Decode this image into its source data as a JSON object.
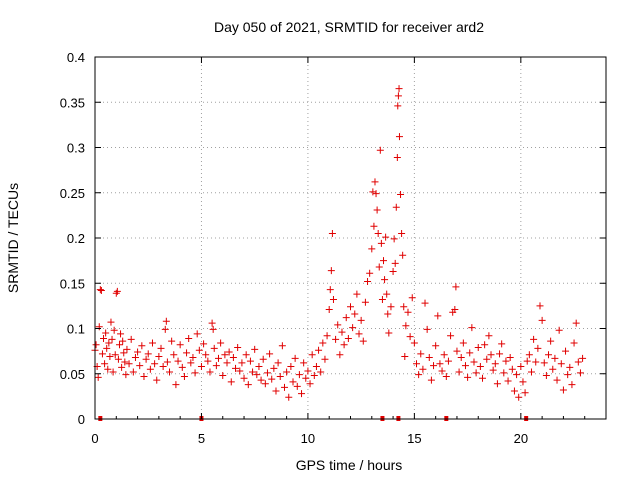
{
  "chart_data": {
    "type": "scatter",
    "title": "Day 050 of 2021, SRMTID for receiver ard2",
    "xlabel": "GPS time / hours",
    "ylabel": "SRMTID / TECUs",
    "xlim": [
      0,
      24
    ],
    "ylim": [
      0,
      0.4
    ],
    "xticks": [
      0,
      5,
      10,
      15,
      20
    ],
    "yticks": [
      0,
      0.05,
      0.1,
      0.15,
      0.2,
      0.25,
      0.3,
      0.35,
      0.4
    ],
    "xtick_labels": [
      "0",
      "5",
      "10",
      "15",
      "20"
    ],
    "ytick_labels": [
      "0",
      "0.05",
      "0.1",
      "0.15",
      "0.2",
      "0.25",
      "0.3",
      "0.35",
      "0.4"
    ],
    "grid": true,
    "marker": "+",
    "series_color": "#e00000",
    "gap_marker_hours": [
      0.25,
      5.0,
      13.5,
      14.25,
      16.5,
      20.25
    ],
    "series": [
      {
        "name": "ard2",
        "points": [
          [
            0.0,
            0.076
          ],
          [
            0.05,
            0.082
          ],
          [
            0.1,
            0.058
          ],
          [
            0.15,
            0.046
          ],
          [
            0.2,
            0.102
          ],
          [
            0.25,
            0.143
          ],
          [
            0.3,
            0.142
          ],
          [
            0.35,
            0.072
          ],
          [
            0.4,
            0.089
          ],
          [
            0.45,
            0.061
          ],
          [
            0.5,
            0.095
          ],
          [
            0.55,
            0.078
          ],
          [
            0.6,
            0.055
          ],
          [
            0.65,
            0.084
          ],
          [
            0.7,
            0.069
          ],
          [
            0.75,
            0.107
          ],
          [
            0.8,
            0.088
          ],
          [
            0.85,
            0.052
          ],
          [
            0.9,
            0.098
          ],
          [
            0.95,
            0.071
          ],
          [
            1.0,
            0.139
          ],
          [
            1.05,
            0.141
          ],
          [
            1.1,
            0.066
          ],
          [
            1.15,
            0.082
          ],
          [
            1.2,
            0.094
          ],
          [
            1.25,
            0.057
          ],
          [
            1.3,
            0.086
          ],
          [
            1.35,
            0.073
          ],
          [
            1.4,
            0.063
          ],
          [
            1.45,
            0.049
          ],
          [
            1.5,
            0.077
          ],
          [
            1.6,
            0.061
          ],
          [
            1.7,
            0.088
          ],
          [
            1.8,
            0.052
          ],
          [
            1.9,
            0.068
          ],
          [
            2.0,
            0.074
          ],
          [
            2.1,
            0.059
          ],
          [
            2.2,
            0.081
          ],
          [
            2.3,
            0.047
          ],
          [
            2.4,
            0.066
          ],
          [
            2.5,
            0.072
          ],
          [
            2.6,
            0.055
          ],
          [
            2.7,
            0.084
          ],
          [
            2.8,
            0.061
          ],
          [
            2.9,
            0.043
          ],
          [
            3.0,
            0.069
          ],
          [
            3.1,
            0.078
          ],
          [
            3.2,
            0.058
          ],
          [
            3.3,
            0.099
          ],
          [
            3.35,
            0.108
          ],
          [
            3.4,
            0.063
          ],
          [
            3.5,
            0.052
          ],
          [
            3.6,
            0.086
          ],
          [
            3.7,
            0.071
          ],
          [
            3.8,
            0.038
          ],
          [
            3.9,
            0.064
          ],
          [
            4.0,
            0.082
          ],
          [
            4.1,
            0.057
          ],
          [
            4.2,
            0.047
          ],
          [
            4.3,
            0.073
          ],
          [
            4.4,
            0.089
          ],
          [
            4.5,
            0.062
          ],
          [
            4.6,
            0.068
          ],
          [
            4.7,
            0.051
          ],
          [
            4.8,
            0.094
          ],
          [
            4.9,
            0.076
          ],
          [
            5.0,
            0.058
          ],
          [
            5.1,
            0.083
          ],
          [
            5.2,
            0.071
          ],
          [
            5.3,
            0.064
          ],
          [
            5.4,
            0.052
          ],
          [
            5.5,
            0.106
          ],
          [
            5.55,
            0.099
          ],
          [
            5.6,
            0.078
          ],
          [
            5.7,
            0.059
          ],
          [
            5.8,
            0.067
          ],
          [
            5.9,
            0.084
          ],
          [
            6.0,
            0.048
          ],
          [
            6.1,
            0.071
          ],
          [
            6.2,
            0.062
          ],
          [
            6.3,
            0.074
          ],
          [
            6.4,
            0.041
          ],
          [
            6.5,
            0.068
          ],
          [
            6.6,
            0.056
          ],
          [
            6.7,
            0.079
          ],
          [
            6.8,
            0.053
          ],
          [
            6.9,
            0.062
          ],
          [
            7.0,
            0.045
          ],
          [
            7.1,
            0.071
          ],
          [
            7.2,
            0.038
          ],
          [
            7.3,
            0.064
          ],
          [
            7.4,
            0.052
          ],
          [
            7.5,
            0.077
          ],
          [
            7.6,
            0.049
          ],
          [
            7.7,
            0.058
          ],
          [
            7.8,
            0.043
          ],
          [
            7.9,
            0.066
          ],
          [
            8.0,
            0.039
          ],
          [
            8.1,
            0.051
          ],
          [
            8.2,
            0.072
          ],
          [
            8.3,
            0.044
          ],
          [
            8.4,
            0.056
          ],
          [
            8.5,
            0.031
          ],
          [
            8.6,
            0.062
          ],
          [
            8.7,
            0.047
          ],
          [
            8.8,
            0.081
          ],
          [
            8.9,
            0.035
          ],
          [
            9.0,
            0.052
          ],
          [
            9.1,
            0.024
          ],
          [
            9.2,
            0.058
          ],
          [
            9.3,
            0.041
          ],
          [
            9.4,
            0.067
          ],
          [
            9.5,
            0.036
          ],
          [
            9.6,
            0.049
          ],
          [
            9.7,
            0.028
          ],
          [
            9.8,
            0.062
          ],
          [
            9.9,
            0.045
          ],
          [
            10.0,
            0.053
          ],
          [
            10.1,
            0.039
          ],
          [
            10.2,
            0.071
          ],
          [
            10.3,
            0.048
          ],
          [
            10.4,
            0.058
          ],
          [
            10.5,
            0.076
          ],
          [
            10.6,
            0.052
          ],
          [
            10.7,
            0.084
          ],
          [
            10.8,
            0.066
          ],
          [
            10.9,
            0.092
          ],
          [
            11.0,
            0.121
          ],
          [
            11.05,
            0.143
          ],
          [
            11.1,
            0.164
          ],
          [
            11.15,
            0.205
          ],
          [
            11.2,
            0.132
          ],
          [
            11.3,
            0.088
          ],
          [
            11.4,
            0.104
          ],
          [
            11.5,
            0.071
          ],
          [
            11.6,
            0.096
          ],
          [
            11.7,
            0.082
          ],
          [
            11.8,
            0.112
          ],
          [
            11.9,
            0.089
          ],
          [
            12.0,
            0.124
          ],
          [
            12.1,
            0.101
          ],
          [
            12.2,
            0.116
          ],
          [
            12.3,
            0.138
          ],
          [
            12.4,
            0.094
          ],
          [
            12.5,
            0.109
          ],
          [
            12.6,
            0.086
          ],
          [
            12.7,
            0.129
          ],
          [
            12.8,
            0.152
          ],
          [
            12.9,
            0.161
          ],
          [
            13.0,
            0.188
          ],
          [
            13.05,
            0.251
          ],
          [
            13.1,
            0.213
          ],
          [
            13.15,
            0.262
          ],
          [
            13.2,
            0.249
          ],
          [
            13.25,
            0.231
          ],
          [
            13.3,
            0.205
          ],
          [
            13.35,
            0.168
          ],
          [
            13.4,
            0.297
          ],
          [
            13.45,
            0.194
          ],
          [
            13.5,
            0.132
          ],
          [
            13.55,
            0.175
          ],
          [
            13.6,
            0.154
          ],
          [
            13.65,
            0.201
          ],
          [
            13.7,
            0.138
          ],
          [
            13.75,
            0.116
          ],
          [
            13.8,
            0.095
          ],
          [
            13.9,
            0.124
          ],
          [
            14.0,
            0.163
          ],
          [
            14.05,
            0.199
          ],
          [
            14.1,
            0.172
          ],
          [
            14.15,
            0.234
          ],
          [
            14.2,
            0.289
          ],
          [
            14.22,
            0.346
          ],
          [
            14.25,
            0.357
          ],
          [
            14.28,
            0.365
          ],
          [
            14.3,
            0.312
          ],
          [
            14.35,
            0.248
          ],
          [
            14.4,
            0.205
          ],
          [
            14.45,
            0.181
          ],
          [
            14.5,
            0.124
          ],
          [
            14.55,
            0.069
          ],
          [
            14.6,
            0.103
          ],
          [
            14.7,
            0.118
          ],
          [
            14.8,
            0.091
          ],
          [
            14.9,
            0.134
          ],
          [
            15.0,
            0.084
          ],
          [
            15.1,
            0.061
          ],
          [
            15.2,
            0.049
          ],
          [
            15.3,
            0.072
          ],
          [
            15.4,
            0.055
          ],
          [
            15.5,
            0.128
          ],
          [
            15.6,
            0.099
          ],
          [
            15.7,
            0.068
          ],
          [
            15.8,
            0.043
          ],
          [
            15.9,
            0.059
          ],
          [
            16.0,
            0.081
          ],
          [
            16.1,
            0.114
          ],
          [
            16.2,
            0.061
          ],
          [
            16.3,
            0.053
          ],
          [
            16.4,
            0.071
          ],
          [
            16.5,
            0.047
          ],
          [
            16.6,
            0.064
          ],
          [
            16.7,
            0.092
          ],
          [
            16.8,
            0.118
          ],
          [
            16.9,
            0.121
          ],
          [
            16.95,
            0.146
          ],
          [
            17.0,
            0.075
          ],
          [
            17.1,
            0.052
          ],
          [
            17.2,
            0.068
          ],
          [
            17.3,
            0.084
          ],
          [
            17.4,
            0.059
          ],
          [
            17.5,
            0.046
          ],
          [
            17.6,
            0.073
          ],
          [
            17.7,
            0.101
          ],
          [
            17.8,
            0.063
          ],
          [
            17.9,
            0.051
          ],
          [
            18.0,
            0.079
          ],
          [
            18.1,
            0.058
          ],
          [
            18.2,
            0.045
          ],
          [
            18.3,
            0.082
          ],
          [
            18.4,
            0.066
          ],
          [
            18.5,
            0.092
          ],
          [
            18.6,
            0.071
          ],
          [
            18.7,
            0.054
          ],
          [
            18.8,
            0.061
          ],
          [
            18.9,
            0.039
          ],
          [
            19.0,
            0.072
          ],
          [
            19.1,
            0.083
          ],
          [
            19.2,
            0.051
          ],
          [
            19.3,
            0.064
          ],
          [
            19.4,
            0.042
          ],
          [
            19.5,
            0.068
          ],
          [
            19.6,
            0.055
          ],
          [
            19.7,
            0.031
          ],
          [
            19.8,
            0.049
          ],
          [
            19.9,
            0.024
          ],
          [
            20.0,
            0.058
          ],
          [
            20.1,
            0.041
          ],
          [
            20.2,
            0.029
          ],
          [
            20.3,
            0.064
          ],
          [
            20.4,
            0.071
          ],
          [
            20.5,
            0.052
          ],
          [
            20.6,
            0.088
          ],
          [
            20.7,
            0.063
          ],
          [
            20.8,
            0.078
          ],
          [
            20.9,
            0.125
          ],
          [
            21.0,
            0.109
          ],
          [
            21.1,
            0.062
          ],
          [
            21.2,
            0.048
          ],
          [
            21.3,
            0.071
          ],
          [
            21.4,
            0.086
          ],
          [
            21.5,
            0.055
          ],
          [
            21.6,
            0.067
          ],
          [
            21.7,
            0.043
          ],
          [
            21.8,
            0.098
          ],
          [
            21.9,
            0.061
          ],
          [
            22.0,
            0.032
          ],
          [
            22.1,
            0.075
          ],
          [
            22.2,
            0.049
          ],
          [
            22.3,
            0.057
          ],
          [
            22.4,
            0.038
          ],
          [
            22.5,
            0.084
          ],
          [
            22.6,
            0.106
          ],
          [
            22.7,
            0.063
          ],
          [
            22.8,
            0.051
          ],
          [
            22.9,
            0.067
          ]
        ]
      }
    ]
  }
}
